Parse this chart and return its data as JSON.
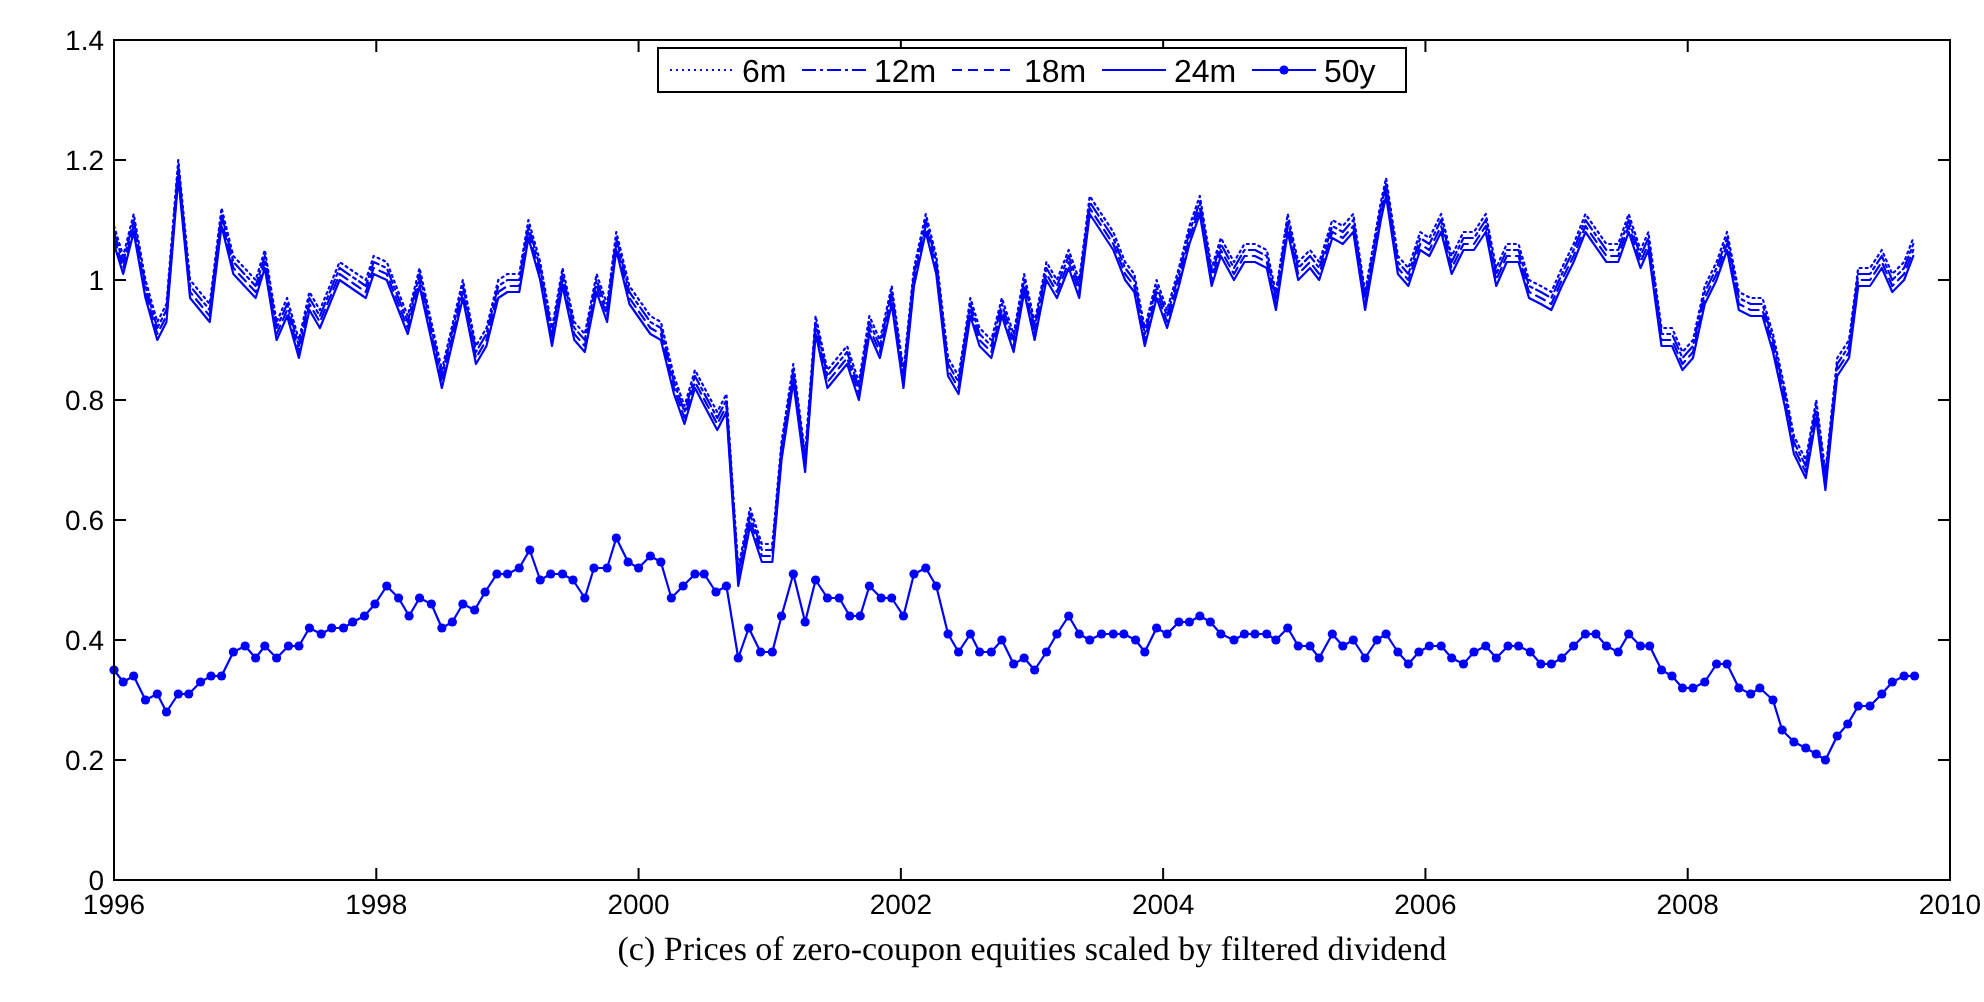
{
  "chart_data": {
    "type": "line",
    "annotations": [
      "(c) Prices of zero-coupon equities scaled by filtered dividend"
    ],
    "x": [
      1996.0,
      1996.07,
      1996.15,
      1996.24,
      1996.33,
      1996.4,
      1996.49,
      1996.58,
      1996.73,
      1996.82,
      1996.91,
      1997.08,
      1997.15,
      1997.24,
      1997.32,
      1997.41,
      1997.49,
      1997.57,
      1997.72,
      1997.92,
      1997.98,
      1998.08,
      1998.24,
      1998.33,
      1998.5,
      1998.66,
      1998.76,
      1998.84,
      1998.93,
      1999.0,
      1999.09,
      1999.16,
      1999.25,
      1999.34,
      1999.42,
      1999.51,
      1999.59,
      1999.68,
      1999.76,
      1999.83,
      1999.93,
      2000.09,
      2000.17,
      2000.27,
      2000.35,
      2000.43,
      2000.6,
      2000.67,
      2000.76,
      2000.85,
      2000.94,
      2001.02,
      2001.09,
      2001.18,
      2001.27,
      2001.35,
      2001.44,
      2001.59,
      2001.68,
      2001.76,
      2001.84,
      2001.93,
      2002.02,
      2002.1,
      2002.19,
      2002.27,
      2002.36,
      2002.44,
      2002.53,
      2002.6,
      2002.69,
      2002.77,
      2002.86,
      2002.94,
      2003.02,
      2003.11,
      2003.19,
      2003.28,
      2003.36,
      2003.44,
      2003.62,
      2003.71,
      2003.78,
      2003.86,
      2003.95,
      2004.03,
      2004.12,
      2004.2,
      2004.28,
      2004.37,
      2004.44,
      2004.54,
      2004.62,
      2004.7,
      2004.79,
      2004.86,
      2004.95,
      2005.03,
      2005.12,
      2005.19,
      2005.29,
      2005.37,
      2005.45,
      2005.54,
      2005.66,
      2005.7,
      2005.79,
      2005.87,
      2005.96,
      2006.03,
      2006.12,
      2006.2,
      2006.29,
      2006.37,
      2006.46,
      2006.54,
      2006.62,
      2006.71,
      2006.79,
      2006.88,
      2006.96,
      2007.04,
      2007.13,
      2007.22,
      2007.38,
      2007.47,
      2007.55,
      2007.64,
      2007.7,
      2007.8,
      2007.88,
      2007.96,
      2008.04,
      2008.13,
      2008.22,
      2008.3,
      2008.39,
      2008.48,
      2008.57,
      2008.65,
      2008.74,
      2008.81,
      2008.9,
      2008.98,
      2009.05,
      2009.14,
      2009.23,
      2009.3,
      2009.39,
      2009.48,
      2009.56,
      2009.65,
      2009.72
    ],
    "series": [
      {
        "name": "6m",
        "color": "#0000ff",
        "line_style": "dotted",
        "values": [
          1.09,
          1.04,
          1.11,
          1.0,
          0.93,
          0.96,
          1.2,
          1.0,
          0.96,
          1.12,
          1.04,
          1.0,
          1.05,
          0.93,
          0.97,
          0.9,
          0.98,
          0.95,
          1.03,
          1.0,
          1.04,
          1.03,
          0.94,
          1.02,
          0.85,
          1.0,
          0.89,
          0.92,
          1.0,
          1.01,
          1.01,
          1.1,
          1.03,
          0.92,
          1.02,
          0.93,
          0.91,
          1.01,
          0.96,
          1.08,
          0.99,
          0.94,
          0.93,
          0.84,
          0.79,
          0.85,
          0.78,
          0.81,
          0.52,
          0.62,
          0.56,
          0.56,
          0.73,
          0.86,
          0.71,
          0.94,
          0.85,
          0.89,
          0.83,
          0.94,
          0.9,
          0.99,
          0.85,
          1.02,
          1.11,
          1.04,
          0.87,
          0.84,
          0.97,
          0.92,
          0.9,
          0.97,
          0.91,
          1.01,
          0.93,
          1.03,
          1.0,
          1.05,
          1.0,
          1.14,
          1.08,
          1.03,
          1.01,
          0.92,
          1.0,
          0.95,
          1.02,
          1.09,
          1.14,
          1.02,
          1.07,
          1.03,
          1.06,
          1.06,
          1.05,
          0.98,
          1.11,
          1.03,
          1.05,
          1.03,
          1.1,
          1.09,
          1.11,
          0.98,
          1.13,
          1.17,
          1.04,
          1.02,
          1.08,
          1.07,
          1.11,
          1.04,
          1.08,
          1.08,
          1.11,
          1.02,
          1.06,
          1.06,
          1.0,
          0.99,
          0.98,
          1.02,
          1.06,
          1.11,
          1.06,
          1.06,
          1.11,
          1.05,
          1.08,
          0.92,
          0.92,
          0.88,
          0.9,
          0.99,
          1.03,
          1.08,
          0.98,
          0.97,
          0.97,
          0.91,
          0.82,
          0.74,
          0.7,
          0.8,
          0.68,
          0.87,
          0.9,
          1.02,
          1.02,
          1.05,
          1.01,
          1.03,
          1.07
        ]
      },
      {
        "name": "12m",
        "color": "#0000ff",
        "line_style": "dashdot",
        "values": [
          1.08,
          1.03,
          1.1,
          0.99,
          0.92,
          0.95,
          1.19,
          0.99,
          0.95,
          1.11,
          1.03,
          0.99,
          1.04,
          0.92,
          0.96,
          0.89,
          0.97,
          0.94,
          1.02,
          0.99,
          1.03,
          1.02,
          0.93,
          1.01,
          0.84,
          0.99,
          0.88,
          0.91,
          0.99,
          1.0,
          1.0,
          1.09,
          1.02,
          0.91,
          1.01,
          0.92,
          0.9,
          1.0,
          0.95,
          1.07,
          0.98,
          0.93,
          0.92,
          0.83,
          0.78,
          0.84,
          0.77,
          0.8,
          0.51,
          0.61,
          0.55,
          0.55,
          0.72,
          0.85,
          0.7,
          0.93,
          0.84,
          0.88,
          0.82,
          0.93,
          0.89,
          0.98,
          0.84,
          1.01,
          1.1,
          1.03,
          0.86,
          0.83,
          0.96,
          0.91,
          0.89,
          0.96,
          0.9,
          1.0,
          0.92,
          1.02,
          0.99,
          1.04,
          0.99,
          1.13,
          1.07,
          1.02,
          1.0,
          0.91,
          0.99,
          0.94,
          1.01,
          1.08,
          1.13,
          1.01,
          1.06,
          1.02,
          1.05,
          1.05,
          1.04,
          0.97,
          1.1,
          1.02,
          1.04,
          1.02,
          1.09,
          1.08,
          1.1,
          0.97,
          1.12,
          1.16,
          1.03,
          1.01,
          1.07,
          1.06,
          1.1,
          1.03,
          1.07,
          1.07,
          1.1,
          1.01,
          1.05,
          1.05,
          0.99,
          0.98,
          0.97,
          1.01,
          1.05,
          1.1,
          1.05,
          1.05,
          1.1,
          1.04,
          1.07,
          0.91,
          0.91,
          0.87,
          0.89,
          0.98,
          1.02,
          1.07,
          0.97,
          0.96,
          0.96,
          0.9,
          0.81,
          0.73,
          0.69,
          0.79,
          0.67,
          0.86,
          0.89,
          1.01,
          1.01,
          1.04,
          1.0,
          1.02,
          1.06
        ]
      },
      {
        "name": "18m",
        "color": "#0000ff",
        "line_style": "dashed",
        "values": [
          1.07,
          1.02,
          1.09,
          0.98,
          0.91,
          0.94,
          1.18,
          0.98,
          0.94,
          1.1,
          1.02,
          0.98,
          1.03,
          0.91,
          0.95,
          0.88,
          0.96,
          0.93,
          1.01,
          0.98,
          1.02,
          1.01,
          0.92,
          1.0,
          0.83,
          0.98,
          0.87,
          0.9,
          0.98,
          0.99,
          0.99,
          1.08,
          1.01,
          0.9,
          1.0,
          0.91,
          0.89,
          0.99,
          0.94,
          1.06,
          0.97,
          0.92,
          0.91,
          0.82,
          0.77,
          0.83,
          0.76,
          0.79,
          0.5,
          0.6,
          0.54,
          0.54,
          0.71,
          0.84,
          0.69,
          0.92,
          0.83,
          0.87,
          0.81,
          0.92,
          0.88,
          0.97,
          0.83,
          1.0,
          1.09,
          1.02,
          0.85,
          0.82,
          0.95,
          0.9,
          0.88,
          0.95,
          0.89,
          0.99,
          0.91,
          1.01,
          0.98,
          1.03,
          0.98,
          1.12,
          1.06,
          1.01,
          0.99,
          0.9,
          0.98,
          0.93,
          1.0,
          1.07,
          1.12,
          1.0,
          1.05,
          1.01,
          1.04,
          1.04,
          1.03,
          0.96,
          1.09,
          1.01,
          1.03,
          1.01,
          1.08,
          1.07,
          1.09,
          0.96,
          1.11,
          1.15,
          1.02,
          1.0,
          1.06,
          1.05,
          1.09,
          1.02,
          1.06,
          1.06,
          1.09,
          1.0,
          1.04,
          1.04,
          0.98,
          0.97,
          0.96,
          1.0,
          1.04,
          1.09,
          1.04,
          1.04,
          1.09,
          1.03,
          1.06,
          0.9,
          0.9,
          0.86,
          0.88,
          0.97,
          1.01,
          1.06,
          0.96,
          0.95,
          0.95,
          0.89,
          0.8,
          0.72,
          0.68,
          0.78,
          0.66,
          0.85,
          0.88,
          1.0,
          1.0,
          1.03,
          0.99,
          1.01,
          1.05
        ]
      },
      {
        "name": "24m",
        "color": "#0000ff",
        "line_style": "solid",
        "values": [
          1.06,
          1.01,
          1.08,
          0.97,
          0.9,
          0.93,
          1.17,
          0.97,
          0.93,
          1.09,
          1.01,
          0.97,
          1.02,
          0.9,
          0.94,
          0.87,
          0.95,
          0.92,
          1.0,
          0.97,
          1.01,
          1.0,
          0.91,
          0.99,
          0.82,
          0.97,
          0.86,
          0.89,
          0.97,
          0.98,
          0.98,
          1.07,
          1.0,
          0.89,
          0.99,
          0.9,
          0.88,
          0.98,
          0.93,
          1.05,
          0.96,
          0.91,
          0.9,
          0.81,
          0.76,
          0.82,
          0.75,
          0.78,
          0.49,
          0.59,
          0.53,
          0.53,
          0.7,
          0.83,
          0.68,
          0.91,
          0.82,
          0.86,
          0.8,
          0.91,
          0.87,
          0.96,
          0.82,
          0.99,
          1.08,
          1.01,
          0.84,
          0.81,
          0.94,
          0.89,
          0.87,
          0.94,
          0.88,
          0.98,
          0.9,
          1.0,
          0.97,
          1.02,
          0.97,
          1.11,
          1.05,
          1.0,
          0.98,
          0.89,
          0.97,
          0.92,
          0.99,
          1.06,
          1.11,
          0.99,
          1.04,
          1.0,
          1.03,
          1.03,
          1.02,
          0.95,
          1.08,
          1.0,
          1.02,
          1.0,
          1.07,
          1.06,
          1.08,
          0.95,
          1.1,
          1.14,
          1.01,
          0.99,
          1.05,
          1.04,
          1.08,
          1.01,
          1.05,
          1.05,
          1.08,
          0.99,
          1.03,
          1.03,
          0.97,
          0.96,
          0.95,
          0.99,
          1.03,
          1.08,
          1.03,
          1.03,
          1.08,
          1.02,
          1.05,
          0.89,
          0.89,
          0.85,
          0.87,
          0.96,
          1.0,
          1.05,
          0.95,
          0.94,
          0.94,
          0.88,
          0.79,
          0.71,
          0.67,
          0.77,
          0.65,
          0.84,
          0.87,
          0.99,
          0.99,
          1.02,
          0.98,
          1.0,
          1.04
        ]
      },
      {
        "name": "50y",
        "color": "#0000ff",
        "line_style": "solid",
        "marker": "circle",
        "x": [
          1996.0,
          1996.07,
          1996.15,
          1996.24,
          1996.33,
          1996.4,
          1996.49,
          1996.57,
          1996.66,
          1996.74,
          1996.82,
          1996.91,
          1997.0,
          1997.08,
          1997.15,
          1997.24,
          1997.33,
          1997.41,
          1997.49,
          1997.58,
          1997.66,
          1997.75,
          1997.82,
          1997.91,
          1997.99,
          1998.08,
          1998.17,
          1998.25,
          1998.33,
          1998.42,
          1998.5,
          1998.58,
          1998.66,
          1998.75,
          1998.83,
          1998.92,
          1999.0,
          1999.09,
          1999.17,
          1999.25,
          1999.33,
          1999.42,
          1999.5,
          1999.59,
          1999.66,
          1999.76,
          1999.83,
          1999.92,
          2000.0,
          2000.09,
          2000.17,
          2000.25,
          2000.34,
          2000.43,
          2000.5,
          2000.59,
          2000.67,
          2000.76,
          2000.84,
          2000.93,
          2001.02,
          2001.09,
          2001.18,
          2001.27,
          2001.35,
          2001.44,
          2001.53,
          2001.61,
          2001.69,
          2001.76,
          2001.85,
          2001.93,
          2002.02,
          2002.1,
          2002.19,
          2002.27,
          2002.36,
          2002.44,
          2002.53,
          2002.6,
          2002.69,
          2002.77,
          2002.86,
          2002.94,
          2003.02,
          2003.11,
          2003.19,
          2003.28,
          2003.36,
          2003.44,
          2003.53,
          2003.62,
          2003.7,
          2003.79,
          2003.86,
          2003.95,
          2004.03,
          2004.12,
          2004.2,
          2004.28,
          2004.36,
          2004.44,
          2004.54,
          2004.62,
          2004.7,
          2004.79,
          2004.86,
          2004.95,
          2005.03,
          2005.12,
          2005.19,
          2005.29,
          2005.37,
          2005.45,
          2005.54,
          2005.63,
          2005.7,
          2005.79,
          2005.87,
          2005.95,
          2006.03,
          2006.12,
          2006.2,
          2006.29,
          2006.37,
          2006.46,
          2006.54,
          2006.63,
          2006.71,
          2006.8,
          2006.88,
          2006.96,
          2007.04,
          2007.13,
          2007.22,
          2007.3,
          2007.38,
          2007.47,
          2007.55,
          2007.64,
          2007.71,
          2007.8,
          2007.88,
          2007.96,
          2008.04,
          2008.13,
          2008.22,
          2008.3,
          2008.39,
          2008.48,
          2008.55,
          2008.65,
          2008.72,
          2008.81,
          2008.9,
          2008.98,
          2009.05,
          2009.14,
          2009.22,
          2009.3,
          2009.39,
          2009.48,
          2009.56,
          2009.65,
          2009.73
        ],
        "values": [
          0.35,
          0.33,
          0.34,
          0.3,
          0.31,
          0.28,
          0.31,
          0.31,
          0.33,
          0.34,
          0.34,
          0.38,
          0.39,
          0.37,
          0.39,
          0.37,
          0.39,
          0.39,
          0.42,
          0.41,
          0.42,
          0.42,
          0.43,
          0.44,
          0.46,
          0.49,
          0.47,
          0.44,
          0.47,
          0.46,
          0.42,
          0.43,
          0.46,
          0.45,
          0.48,
          0.51,
          0.51,
          0.52,
          0.55,
          0.5,
          0.51,
          0.51,
          0.5,
          0.47,
          0.52,
          0.52,
          0.57,
          0.53,
          0.52,
          0.54,
          0.53,
          0.47,
          0.49,
          0.51,
          0.51,
          0.48,
          0.49,
          0.37,
          0.42,
          0.38,
          0.38,
          0.44,
          0.51,
          0.43,
          0.5,
          0.47,
          0.47,
          0.44,
          0.44,
          0.49,
          0.47,
          0.47,
          0.44,
          0.51,
          0.52,
          0.49,
          0.41,
          0.38,
          0.41,
          0.38,
          0.38,
          0.4,
          0.36,
          0.37,
          0.35,
          0.38,
          0.41,
          0.44,
          0.41,
          0.4,
          0.41,
          0.41,
          0.41,
          0.4,
          0.38,
          0.42,
          0.41,
          0.43,
          0.43,
          0.44,
          0.43,
          0.41,
          0.4,
          0.41,
          0.41,
          0.41,
          0.4,
          0.42,
          0.39,
          0.39,
          0.37,
          0.41,
          0.39,
          0.4,
          0.37,
          0.4,
          0.41,
          0.38,
          0.36,
          0.38,
          0.39,
          0.39,
          0.37,
          0.36,
          0.38,
          0.39,
          0.37,
          0.39,
          0.39,
          0.38,
          0.36,
          0.36,
          0.37,
          0.39,
          0.41,
          0.41,
          0.39,
          0.38,
          0.41,
          0.39,
          0.39,
          0.35,
          0.34,
          0.32,
          0.32,
          0.33,
          0.36,
          0.36,
          0.32,
          0.31,
          0.32,
          0.3,
          0.25,
          0.23,
          0.22,
          0.21,
          0.2,
          0.24,
          0.26,
          0.29,
          0.29,
          0.31,
          0.33,
          0.34,
          0.34
        ]
      }
    ],
    "xlim": [
      1996,
      2010
    ],
    "xticks": [
      1996,
      1998,
      2000,
      2002,
      2004,
      2006,
      2008,
      2010
    ],
    "ylim": [
      0,
      1.4
    ],
    "yticks": [
      0,
      0.2,
      0.4,
      0.6,
      0.8,
      1,
      1.2,
      1.4
    ],
    "grid": false,
    "legend": "top"
  }
}
